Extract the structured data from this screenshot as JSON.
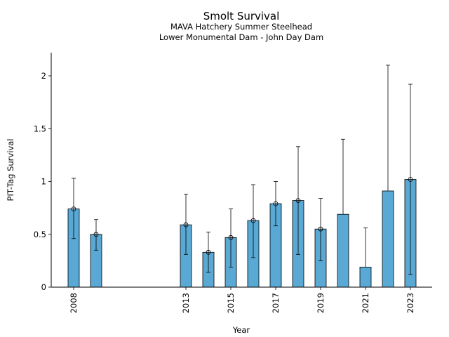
{
  "chart_data": {
    "type": "bar",
    "title": "Smolt Survival",
    "subtitle_lines": [
      "MAVA Hatchery Summer Steelhead",
      "Lower Monumental Dam - John Day Dam"
    ],
    "xlabel": "Year",
    "ylabel": "PIT-Tag Survival",
    "xlim": [
      2007.2,
      2024
    ],
    "ylim": [
      0,
      2.2
    ],
    "y_ticks": [
      0,
      0.5,
      1,
      1.5,
      2
    ],
    "y_tick_labels": [
      "0",
      "0.5",
      "1",
      "1.5",
      "2"
    ],
    "x_ticks": [
      2008,
      2013,
      2015,
      2017,
      2019,
      2021,
      2023
    ],
    "x_tick_labels": [
      "2008",
      "2013",
      "2015",
      "2017",
      "2019",
      "2021",
      "2023"
    ],
    "grid": false,
    "bar_color": "#5aa8d4",
    "series": [
      {
        "name": "",
        "x": [
          2008,
          2009,
          2013,
          2014,
          2015,
          2016,
          2017,
          2018,
          2019,
          2020,
          2021,
          2022,
          2023
        ],
        "values": [
          0.74,
          0.5,
          0.59,
          0.33,
          0.47,
          0.63,
          0.79,
          0.82,
          0.55,
          0.69,
          0.19,
          0.91,
          1.02
        ],
        "lower": [
          0.46,
          0.35,
          0.31,
          0.14,
          0.19,
          0.28,
          0.58,
          0.31,
          0.25,
          null,
          null,
          null,
          0.12
        ],
        "upper": [
          1.03,
          0.64,
          0.88,
          0.52,
          0.74,
          0.97,
          1.0,
          1.33,
          0.84,
          1.4,
          0.56,
          2.1,
          1.92
        ],
        "marker": [
          true,
          true,
          true,
          true,
          true,
          true,
          true,
          true,
          true,
          false,
          false,
          false,
          true
        ]
      }
    ]
  }
}
